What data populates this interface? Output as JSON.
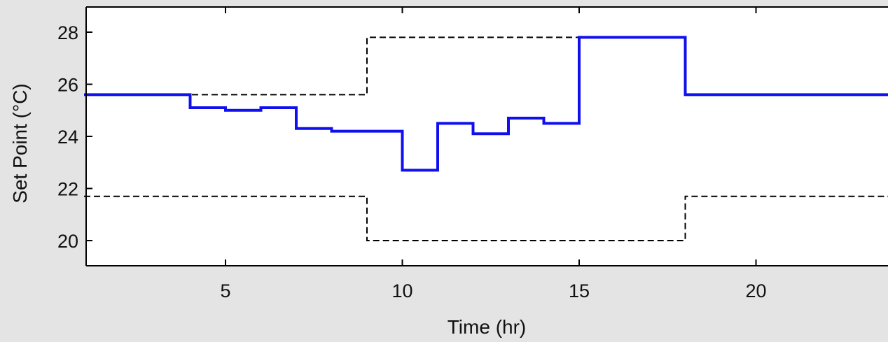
{
  "chart_data": {
    "type": "line",
    "title": "",
    "xlabel": "Time (hr)",
    "ylabel": "Set Point (°C)",
    "xlim": [
      1,
      24
    ],
    "ylim": [
      19,
      29
    ],
    "xticks": [
      5,
      10,
      15,
      20
    ],
    "yticks": [
      20,
      22,
      24,
      26,
      28
    ],
    "xtick_labels": [
      "5",
      "10",
      "15",
      "20"
    ],
    "ytick_labels": [
      "20",
      "22",
      "24",
      "26",
      "28"
    ],
    "grid": false,
    "legend": "none",
    "background_color": "#e4e4e4",
    "plot_background_color": "#ffffff",
    "series": [
      {
        "style": "solid",
        "color": "#1010ee",
        "step": "post",
        "x": [
          1,
          4,
          5,
          6,
          7,
          8,
          9,
          10,
          11,
          12,
          13,
          14,
          15,
          18,
          24
        ],
        "values": [
          25.6,
          25.1,
          25.0,
          25.1,
          24.3,
          24.2,
          24.2,
          22.7,
          24.5,
          24.1,
          24.7,
          24.5,
          27.8,
          25.6,
          25.6
        ]
      },
      {
        "style": "dashed",
        "color": "#000000",
        "step": "post",
        "x": [
          1,
          9,
          18,
          24
        ],
        "values": [
          25.6,
          27.8,
          25.6,
          25.6
        ]
      },
      {
        "style": "dashed",
        "color": "#000000",
        "step": "post",
        "x": [
          1,
          9,
          18,
          24
        ],
        "values": [
          21.7,
          20.0,
          21.7,
          21.7
        ]
      }
    ]
  }
}
